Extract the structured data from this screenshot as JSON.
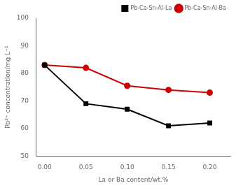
{
  "chart_data": {
    "type": "line",
    "x_label": "La or Ba content/wt.%",
    "y_label": "Pb²⁺ concentration/mg L⁻¹",
    "x": [
      0.0,
      0.05,
      0.1,
      0.15,
      0.2
    ],
    "series": [
      {
        "name": "Pb-Ca-Sn-Al-La",
        "color": "#000000",
        "marker": "square",
        "values": [
          83.0,
          69.0,
          67.0,
          61.0,
          62.0
        ]
      },
      {
        "name": "Pb-Ca-Sn-Al-Ba",
        "color": "#cc0000",
        "marker": "circle",
        "values": [
          83.0,
          82.0,
          75.5,
          74.0,
          73.0
        ]
      }
    ],
    "xlim": [
      -0.01,
      0.225
    ],
    "xticks": [
      {
        "value": 0,
        "label": "0.00"
      },
      0.05,
      {
        "value": 0.1,
        "label": "0.10"
      },
      0.15,
      {
        "value": 0.2,
        "label": "0.20"
      }
    ],
    "ylim": [
      50,
      100
    ],
    "yticks": [
      50,
      60,
      70,
      80,
      90,
      100
    ],
    "grid": false,
    "legend": "upper right"
  }
}
